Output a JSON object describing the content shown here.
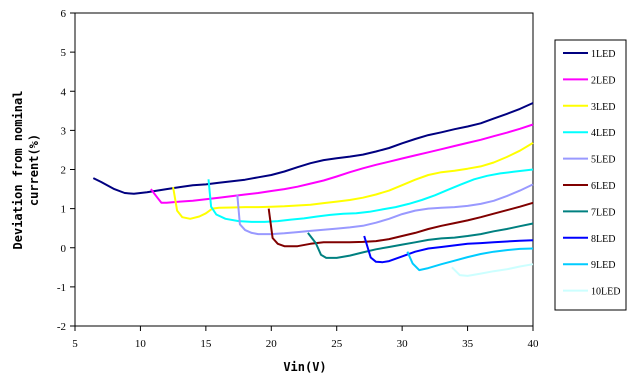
{
  "chart_data": {
    "type": "line",
    "title": "",
    "xlabel": "Vin(V)",
    "ylabel": "Deviation from nominal current(%)",
    "ylabel_lines": [
      "Deviation from nominal",
      "current(%)"
    ],
    "xlim": [
      5,
      40
    ],
    "ylim": [
      -2,
      6
    ],
    "xticks": [
      5,
      10,
      15,
      20,
      25,
      30,
      35,
      40
    ],
    "yticks": [
      -2,
      -1,
      0,
      1,
      2,
      3,
      4,
      5,
      6
    ],
    "grid": false,
    "legend_position": "right",
    "series": [
      {
        "name": "1LED",
        "color": "#000080",
        "points": [
          [
            6.4,
            1.78
          ],
          [
            7,
            1.68
          ],
          [
            8,
            1.5
          ],
          [
            8.8,
            1.4
          ],
          [
            9.5,
            1.38
          ],
          [
            10.5,
            1.42
          ],
          [
            12,
            1.5
          ],
          [
            13,
            1.55
          ],
          [
            14,
            1.6
          ],
          [
            15,
            1.62
          ],
          [
            16,
            1.66
          ],
          [
            17,
            1.7
          ],
          [
            18,
            1.74
          ],
          [
            19,
            1.8
          ],
          [
            20,
            1.86
          ],
          [
            21,
            1.95
          ],
          [
            22,
            2.06
          ],
          [
            23,
            2.16
          ],
          [
            24,
            2.24
          ],
          [
            25,
            2.29
          ],
          [
            26,
            2.33
          ],
          [
            27,
            2.38
          ],
          [
            28,
            2.46
          ],
          [
            29,
            2.55
          ],
          [
            30,
            2.67
          ],
          [
            31,
            2.78
          ],
          [
            32,
            2.88
          ],
          [
            33,
            2.95
          ],
          [
            34,
            3.03
          ],
          [
            35,
            3.1
          ],
          [
            36,
            3.18
          ],
          [
            37,
            3.3
          ],
          [
            38,
            3.42
          ],
          [
            39,
            3.55
          ],
          [
            40,
            3.7
          ]
        ]
      },
      {
        "name": "2LED",
        "color": "#FF00FF",
        "points": [
          [
            10.8,
            1.5
          ],
          [
            11.3,
            1.28
          ],
          [
            11.6,
            1.15
          ],
          [
            12,
            1.15
          ],
          [
            13,
            1.18
          ],
          [
            14,
            1.2
          ],
          [
            15,
            1.24
          ],
          [
            16,
            1.28
          ],
          [
            17,
            1.32
          ],
          [
            18,
            1.36
          ],
          [
            19,
            1.4
          ],
          [
            20,
            1.45
          ],
          [
            21,
            1.5
          ],
          [
            22,
            1.56
          ],
          [
            23,
            1.64
          ],
          [
            24,
            1.72
          ],
          [
            25,
            1.82
          ],
          [
            26,
            1.93
          ],
          [
            27,
            2.03
          ],
          [
            28,
            2.12
          ],
          [
            29,
            2.2
          ],
          [
            30,
            2.28
          ],
          [
            31,
            2.36
          ],
          [
            32,
            2.44
          ],
          [
            33,
            2.52
          ],
          [
            34,
            2.6
          ],
          [
            35,
            2.68
          ],
          [
            36,
            2.76
          ],
          [
            37,
            2.85
          ],
          [
            38,
            2.94
          ],
          [
            39,
            3.04
          ],
          [
            40,
            3.15
          ]
        ]
      },
      {
        "name": "3LED",
        "color": "#FFFF00",
        "points": [
          [
            12.5,
            1.55
          ],
          [
            12.8,
            0.95
          ],
          [
            13.2,
            0.78
          ],
          [
            13.8,
            0.74
          ],
          [
            14.5,
            0.8
          ],
          [
            15,
            0.88
          ],
          [
            15.5,
            1.0
          ],
          [
            16,
            1.02
          ],
          [
            17,
            1.03
          ],
          [
            18,
            1.04
          ],
          [
            19,
            1.04
          ],
          [
            20,
            1.05
          ],
          [
            21,
            1.06
          ],
          [
            22,
            1.08
          ],
          [
            23,
            1.1
          ],
          [
            24,
            1.14
          ],
          [
            25,
            1.18
          ],
          [
            26,
            1.22
          ],
          [
            27,
            1.28
          ],
          [
            28,
            1.36
          ],
          [
            29,
            1.46
          ],
          [
            30,
            1.6
          ],
          [
            31,
            1.74
          ],
          [
            32,
            1.86
          ],
          [
            33,
            1.93
          ],
          [
            34,
            1.97
          ],
          [
            35,
            2.02
          ],
          [
            36,
            2.08
          ],
          [
            37,
            2.18
          ],
          [
            38,
            2.32
          ],
          [
            39,
            2.48
          ],
          [
            40,
            2.68
          ]
        ]
      },
      {
        "name": "4LED",
        "color": "#00FFFF",
        "points": [
          [
            15.2,
            1.75
          ],
          [
            15.4,
            1.05
          ],
          [
            15.8,
            0.85
          ],
          [
            16.5,
            0.74
          ],
          [
            17.5,
            0.68
          ],
          [
            18.5,
            0.66
          ],
          [
            19.5,
            0.66
          ],
          [
            20.5,
            0.68
          ],
          [
            21.5,
            0.72
          ],
          [
            22.5,
            0.75
          ],
          [
            23.5,
            0.8
          ],
          [
            24.5,
            0.84
          ],
          [
            25.5,
            0.87
          ],
          [
            26.5,
            0.88
          ],
          [
            27.5,
            0.92
          ],
          [
            28.5,
            0.98
          ],
          [
            29.5,
            1.04
          ],
          [
            30.5,
            1.12
          ],
          [
            31.5,
            1.22
          ],
          [
            32.5,
            1.34
          ],
          [
            33.5,
            1.48
          ],
          [
            34.5,
            1.62
          ],
          [
            35.5,
            1.75
          ],
          [
            36.5,
            1.84
          ],
          [
            37.5,
            1.9
          ],
          [
            38.5,
            1.94
          ],
          [
            39.5,
            1.98
          ],
          [
            40,
            2.0
          ]
        ]
      },
      {
        "name": "5LED",
        "color": "#9999FF",
        "points": [
          [
            17.4,
            1.35
          ],
          [
            17.6,
            0.6
          ],
          [
            18,
            0.45
          ],
          [
            18.5,
            0.38
          ],
          [
            19,
            0.35
          ],
          [
            20,
            0.35
          ],
          [
            21,
            0.37
          ],
          [
            22,
            0.4
          ],
          [
            23,
            0.43
          ],
          [
            24,
            0.46
          ],
          [
            25,
            0.49
          ],
          [
            26,
            0.52
          ],
          [
            27,
            0.56
          ],
          [
            28,
            0.64
          ],
          [
            29,
            0.74
          ],
          [
            30,
            0.86
          ],
          [
            31,
            0.95
          ],
          [
            32,
            1.0
          ],
          [
            33,
            1.02
          ],
          [
            34,
            1.04
          ],
          [
            35,
            1.07
          ],
          [
            36,
            1.12
          ],
          [
            37,
            1.2
          ],
          [
            38,
            1.32
          ],
          [
            39,
            1.46
          ],
          [
            40,
            1.62
          ]
        ]
      },
      {
        "name": "6LED",
        "color": "#800000",
        "points": [
          [
            19.8,
            1.0
          ],
          [
            20.1,
            0.25
          ],
          [
            20.5,
            0.1
          ],
          [
            21,
            0.04
          ],
          [
            22,
            0.04
          ],
          [
            23,
            0.1
          ],
          [
            24,
            0.14
          ],
          [
            25,
            0.14
          ],
          [
            26,
            0.14
          ],
          [
            27,
            0.15
          ],
          [
            28,
            0.17
          ],
          [
            29,
            0.22
          ],
          [
            30,
            0.3
          ],
          [
            31,
            0.38
          ],
          [
            32,
            0.48
          ],
          [
            33,
            0.56
          ],
          [
            34,
            0.63
          ],
          [
            35,
            0.7
          ],
          [
            36,
            0.78
          ],
          [
            37,
            0.87
          ],
          [
            38,
            0.96
          ],
          [
            39,
            1.05
          ],
          [
            40,
            1.15
          ]
        ]
      },
      {
        "name": "7LED",
        "color": "#008080",
        "points": [
          [
            22.8,
            0.38
          ],
          [
            23.4,
            0.12
          ],
          [
            23.8,
            -0.18
          ],
          [
            24.2,
            -0.26
          ],
          [
            25,
            -0.26
          ],
          [
            26,
            -0.2
          ],
          [
            27,
            -0.12
          ],
          [
            28,
            -0.04
          ],
          [
            29,
            0.02
          ],
          [
            30,
            0.08
          ],
          [
            31,
            0.14
          ],
          [
            32,
            0.2
          ],
          [
            33,
            0.24
          ],
          [
            34,
            0.26
          ],
          [
            35,
            0.3
          ],
          [
            36,
            0.35
          ],
          [
            37,
            0.42
          ],
          [
            38,
            0.48
          ],
          [
            39,
            0.55
          ],
          [
            40,
            0.62
          ]
        ]
      },
      {
        "name": "8LED",
        "color": "#0000FF",
        "points": [
          [
            27.1,
            0.3
          ],
          [
            27.6,
            -0.25
          ],
          [
            28,
            -0.36
          ],
          [
            28.5,
            -0.37
          ],
          [
            29,
            -0.34
          ],
          [
            30,
            -0.22
          ],
          [
            31,
            -0.1
          ],
          [
            32,
            -0.02
          ],
          [
            33,
            0.02
          ],
          [
            34,
            0.06
          ],
          [
            35,
            0.1
          ],
          [
            36,
            0.12
          ],
          [
            37,
            0.14
          ],
          [
            38,
            0.16
          ],
          [
            39,
            0.18
          ],
          [
            40,
            0.19
          ]
        ]
      },
      {
        "name": "9LED",
        "color": "#00CCFF",
        "points": [
          [
            30.4,
            -0.1
          ],
          [
            30.8,
            -0.4
          ],
          [
            31.3,
            -0.57
          ],
          [
            32,
            -0.52
          ],
          [
            33,
            -0.42
          ],
          [
            34,
            -0.33
          ],
          [
            35,
            -0.24
          ],
          [
            36,
            -0.16
          ],
          [
            37,
            -0.1
          ],
          [
            38,
            -0.06
          ],
          [
            39,
            -0.03
          ],
          [
            40,
            -0.02
          ]
        ]
      },
      {
        "name": "10LED",
        "color": "#CCFFFF",
        "points": [
          [
            33.8,
            -0.5
          ],
          [
            34.4,
            -0.7
          ],
          [
            35,
            -0.72
          ],
          [
            36,
            -0.66
          ],
          [
            37,
            -0.6
          ],
          [
            38,
            -0.55
          ],
          [
            39,
            -0.48
          ],
          [
            40,
            -0.42
          ]
        ]
      }
    ]
  }
}
